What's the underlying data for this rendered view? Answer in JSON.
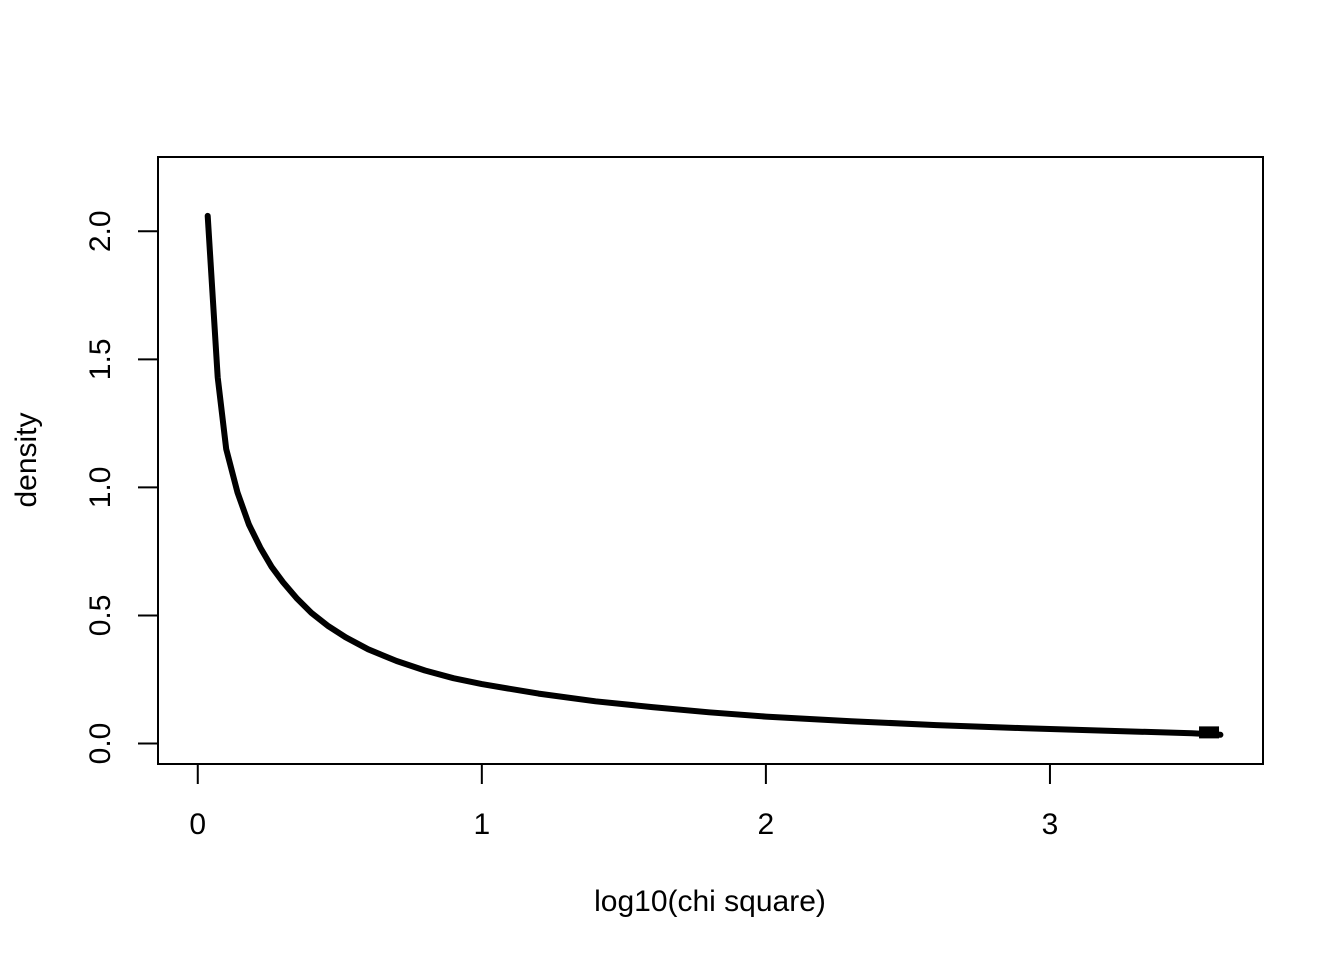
{
  "chart_data": {
    "type": "line",
    "title": "",
    "xlabel": "log10(chi square)",
    "ylabel": "density",
    "xlim": [
      -0.14,
      3.75
    ],
    "ylim": [
      -0.08,
      2.29
    ],
    "x_ticks": [
      0,
      1,
      2,
      3
    ],
    "x_tick_labels": [
      "0",
      "1",
      "2",
      "3"
    ],
    "y_ticks": [
      0.0,
      0.5,
      1.0,
      1.5,
      2.0
    ],
    "y_tick_labels": [
      "0.0",
      "0.5",
      "1.0",
      "1.5",
      "2.0"
    ],
    "grid": false,
    "box": true,
    "series": [
      {
        "color": "#000000",
        "x": [
          0.035,
          0.07,
          0.1,
          0.14,
          0.18,
          0.22,
          0.26,
          0.3,
          0.35,
          0.4,
          0.46,
          0.52,
          0.6,
          0.7,
          0.8,
          0.9,
          1.0,
          1.2,
          1.4,
          1.6,
          1.8,
          2.0,
          2.3,
          2.6,
          2.9,
          3.2,
          3.5,
          3.6
        ],
        "y": [
          2.06,
          1.43,
          1.15,
          0.98,
          0.855,
          0.765,
          0.69,
          0.63,
          0.565,
          0.51,
          0.458,
          0.415,
          0.368,
          0.322,
          0.285,
          0.255,
          0.232,
          0.195,
          0.165,
          0.142,
          0.122,
          0.105,
          0.087,
          0.072,
          0.06,
          0.05,
          0.04,
          0.034
        ]
      }
    ],
    "annotations": [
      {
        "type": "rect-marker",
        "x": 3.56,
        "y": 0.02,
        "color": "#000000"
      }
    ]
  }
}
